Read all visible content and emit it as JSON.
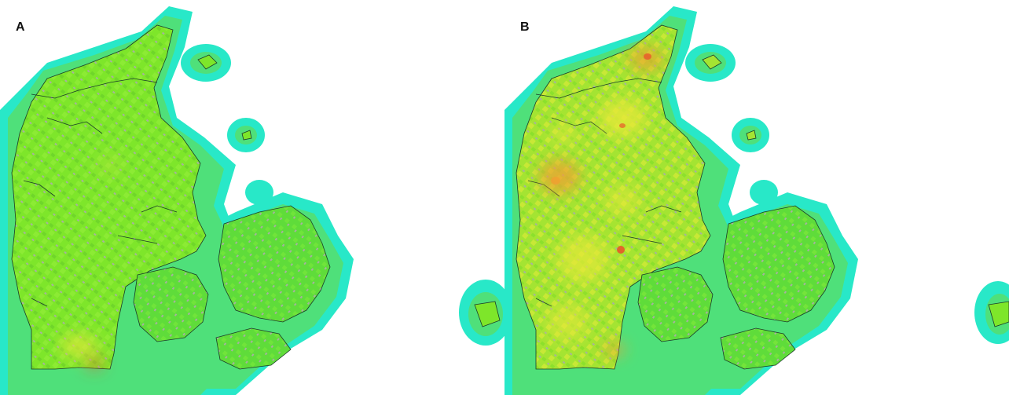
{
  "panels": [
    {
      "label": "A",
      "color_land_base": "#7ee62a",
      "color_halo_outer": "#28e8c8",
      "color_halo_inner": "#4fe07a",
      "hotspot_intensity": "low"
    },
    {
      "label": "B",
      "color_land_base": "#a4e432",
      "color_halo_outer": "#28e8c8",
      "color_halo_inner": "#4fe07a",
      "hotspot_intensity": "high"
    }
  ],
  "colors": {
    "background": "#ffffff",
    "coastline": "#1a3a2a",
    "gap_gray": "#a8b0a0",
    "yellow": "#e6e838",
    "orange": "#f0a030",
    "red": "#e8582a"
  }
}
